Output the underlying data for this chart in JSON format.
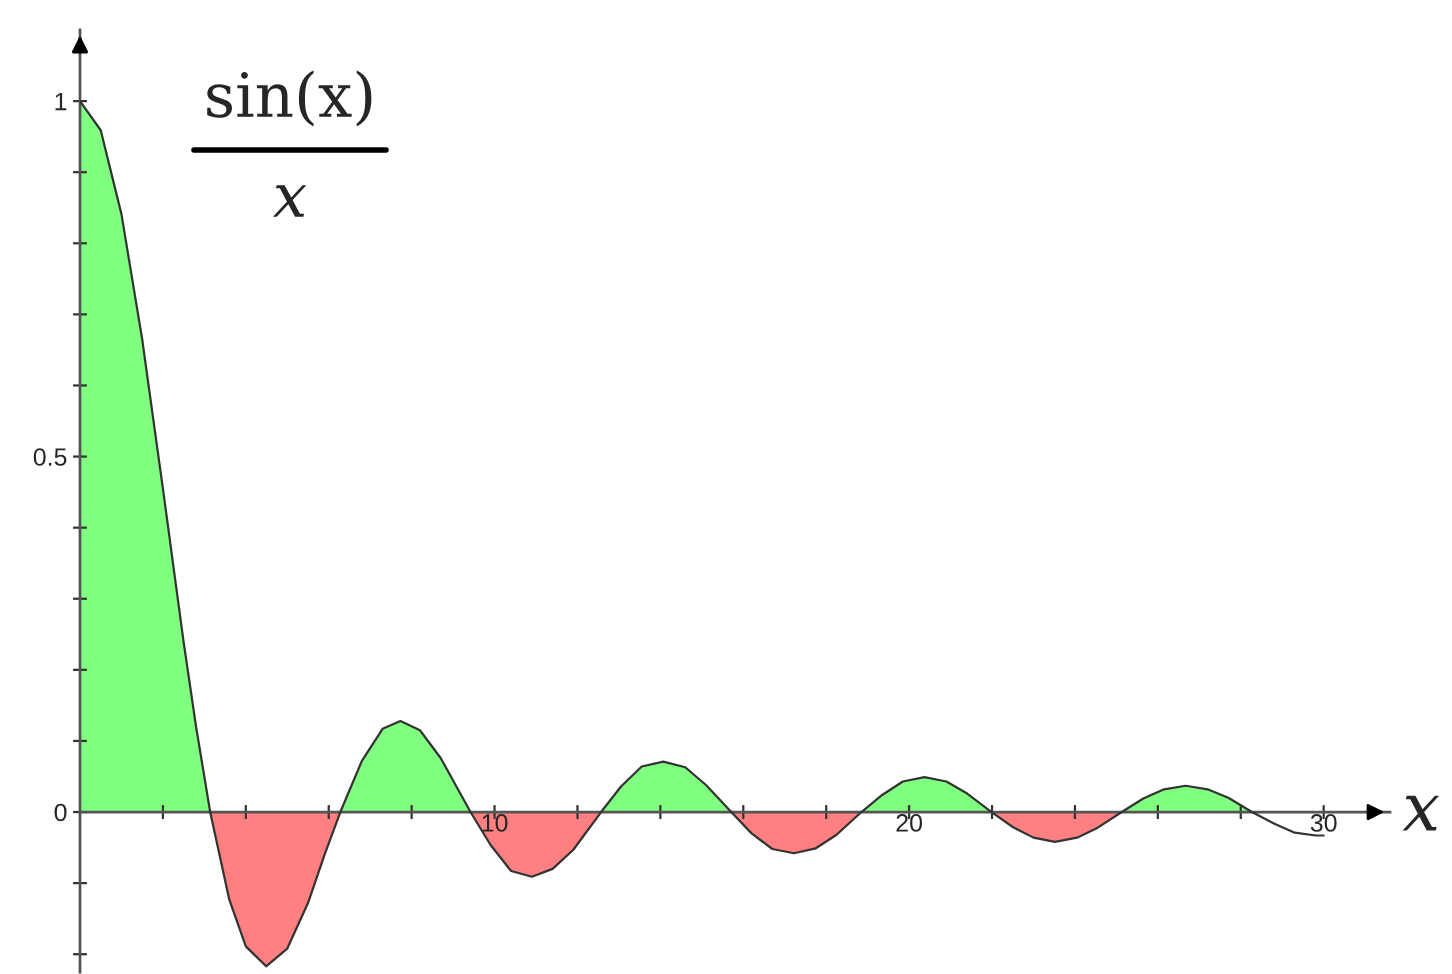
{
  "chart_data": {
    "type": "area",
    "xlabel": "x",
    "annotations": [
      "sin(x)",
      "x"
    ],
    "xlim": [
      0,
      31.6
    ],
    "ylim": [
      -0.225,
      1.1
    ],
    "xticks": [
      {
        "value": 2,
        "label": null
      },
      {
        "value": 4,
        "label": null
      },
      {
        "value": 6,
        "label": null
      },
      {
        "value": 8,
        "label": null
      },
      10,
      {
        "value": 12,
        "label": null
      },
      {
        "value": 14,
        "label": null
      },
      {
        "value": 16,
        "label": null
      },
      {
        "value": 18,
        "label": null
      },
      20,
      {
        "value": 22,
        "label": null
      },
      {
        "value": 24,
        "label": null
      },
      {
        "value": 26,
        "label": null
      },
      {
        "value": 28,
        "label": null
      },
      30
    ],
    "yticks": [
      {
        "value": -0.2,
        "label": null
      },
      {
        "value": -0.1,
        "label": null
      },
      0,
      {
        "value": 0.1,
        "label": null
      },
      {
        "value": 0.2,
        "label": null
      },
      {
        "value": 0.3,
        "label": null
      },
      {
        "value": 0.4,
        "label": null
      },
      0.5,
      {
        "value": 0.6,
        "label": null
      },
      {
        "value": 0.7,
        "label": null
      },
      {
        "value": 0.8,
        "label": null
      },
      {
        "value": 0.9,
        "label": null
      },
      1
    ],
    "series": [
      {
        "color": "#80ff80",
        "x": [
          0,
          0.5,
          1,
          1.5,
          2,
          2.5,
          2.8,
          3.14,
          6.28,
          6.8,
          7.3,
          7.73,
          8.2,
          8.7,
          9.42,
          12.57,
          13.05,
          13.55,
          14.07,
          14.6,
          15.1,
          15.71,
          18.85,
          19.35,
          19.85,
          20.37,
          20.9,
          21.4,
          21.99,
          25.13,
          25.65,
          26.15,
          26.67,
          27.2,
          27.7,
          28.27
        ],
        "values": [
          1,
          0.959,
          0.841,
          0.665,
          0.455,
          0.239,
          0.12,
          0,
          0,
          0.072,
          0.117,
          0.128,
          0.115,
          0.076,
          0,
          0,
          0.036,
          0.064,
          0.071,
          0.063,
          0.038,
          0,
          0,
          0.024,
          0.043,
          0.049,
          0.043,
          0.026,
          0,
          0,
          0.019,
          0.032,
          0.037,
          0.032,
          0.02,
          0
        ]
      },
      {
        "color": "#ff8080",
        "x": [
          3.14,
          3.6,
          4,
          4.49,
          5,
          5.5,
          5.9,
          6.28,
          9.42,
          9.9,
          10.4,
          10.9,
          11.4,
          11.9,
          12.57,
          15.71,
          16.2,
          16.7,
          17.22,
          17.75,
          18.25,
          18.85,
          21.99,
          22.5,
          23,
          23.52,
          24.05,
          24.55,
          25.13
        ],
        "values": [
          0,
          -0.123,
          -0.189,
          -0.217,
          -0.192,
          -0.128,
          -0.06,
          0,
          0,
          -0.046,
          -0.083,
          -0.091,
          -0.08,
          -0.053,
          0,
          0,
          -0.03,
          -0.052,
          -0.058,
          -0.051,
          -0.032,
          0,
          0,
          -0.021,
          -0.036,
          -0.042,
          -0.036,
          -0.022,
          0
        ]
      },
      {
        "type": "line",
        "color": "#333333",
        "x": [
          0,
          0.5,
          1,
          1.5,
          2,
          2.5,
          2.8,
          3.14,
          3.6,
          4,
          4.49,
          5,
          5.5,
          5.9,
          6.28,
          6.8,
          7.3,
          7.73,
          8.2,
          8.7,
          9.42,
          9.9,
          10.4,
          10.9,
          11.4,
          11.9,
          12.57,
          13.05,
          13.55,
          14.07,
          14.6,
          15.1,
          15.71,
          16.2,
          16.7,
          17.22,
          17.75,
          18.25,
          18.85,
          19.35,
          19.85,
          20.37,
          20.9,
          21.4,
          21.99,
          22.5,
          23,
          23.52,
          24.05,
          24.55,
          25.13,
          25.65,
          26.15,
          26.67,
          27.2,
          27.7,
          28.27,
          28.8,
          29.3,
          29.81,
          30
        ],
        "values": [
          1,
          0.959,
          0.841,
          0.665,
          0.455,
          0.239,
          0.12,
          0,
          -0.123,
          -0.189,
          -0.217,
          -0.192,
          -0.128,
          -0.06,
          0,
          0.072,
          0.117,
          0.128,
          0.115,
          0.076,
          0,
          -0.046,
          -0.083,
          -0.091,
          -0.08,
          -0.053,
          0,
          0.036,
          0.064,
          0.071,
          0.063,
          0.038,
          0,
          -0.03,
          -0.052,
          -0.058,
          -0.051,
          -0.032,
          0,
          0.024,
          0.043,
          0.049,
          0.043,
          0.026,
          0,
          -0.021,
          -0.036,
          -0.042,
          -0.036,
          -0.022,
          0,
          0.019,
          0.032,
          0.037,
          0.032,
          0.02,
          0,
          -0.016,
          -0.029,
          -0.033,
          -0.033
        ]
      }
    ]
  }
}
